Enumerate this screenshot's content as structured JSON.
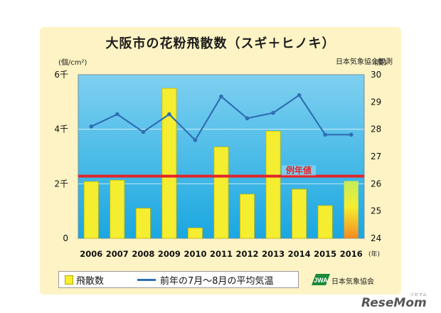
{
  "chart_data": {
    "type": "bar",
    "title": "大阪市の花粉飛散数（スギ＋ヒノキ）",
    "source_note": "日本気象協会観測",
    "left_unit": "(個/cm²)",
    "right_unit": "(度)",
    "x_unit": "(年)",
    "categories": [
      "2006",
      "2007",
      "2008",
      "2009",
      "2010",
      "2011",
      "2012",
      "2013",
      "2014",
      "2015",
      "2016"
    ],
    "left_axis": {
      "ylim": [
        0,
        6000
      ],
      "ticks": [
        0,
        2000,
        4000,
        6000
      ],
      "tick_labels": [
        "0",
        "2千",
        "4千",
        "6千"
      ]
    },
    "right_axis": {
      "ylim": [
        24,
        30
      ],
      "ticks": [
        24,
        25,
        26,
        27,
        28,
        29,
        30
      ],
      "tick_labels": [
        "24",
        "25",
        "26",
        "27",
        "28",
        "29",
        "30"
      ]
    },
    "bar_series": {
      "name": "飛散数",
      "values": [
        2080,
        2130,
        1100,
        5500,
        380,
        3350,
        1620,
        3930,
        1800,
        1200,
        2100
      ],
      "forecast_last": true,
      "color": "#f5ee30",
      "forecast_top_color": "#c4ec5a",
      "forecast_bottom_color": "#f58a20"
    },
    "line_series": {
      "name": "前年の7月～8月の平均気温",
      "values": [
        28.1,
        28.55,
        27.9,
        28.55,
        27.6,
        29.2,
        28.4,
        28.6,
        29.25,
        27.8,
        27.8
      ],
      "color": "#2f6fb3"
    },
    "reference_line": {
      "label": "例年値",
      "value": 2280,
      "color": "#e3262b"
    },
    "grid": true,
    "legend_position": "bottom-left"
  },
  "footer": {
    "org": "日本気象協会",
    "logo_text": "JWA"
  },
  "watermark": {
    "text": "ReseMom",
    "small": "リセマム"
  }
}
